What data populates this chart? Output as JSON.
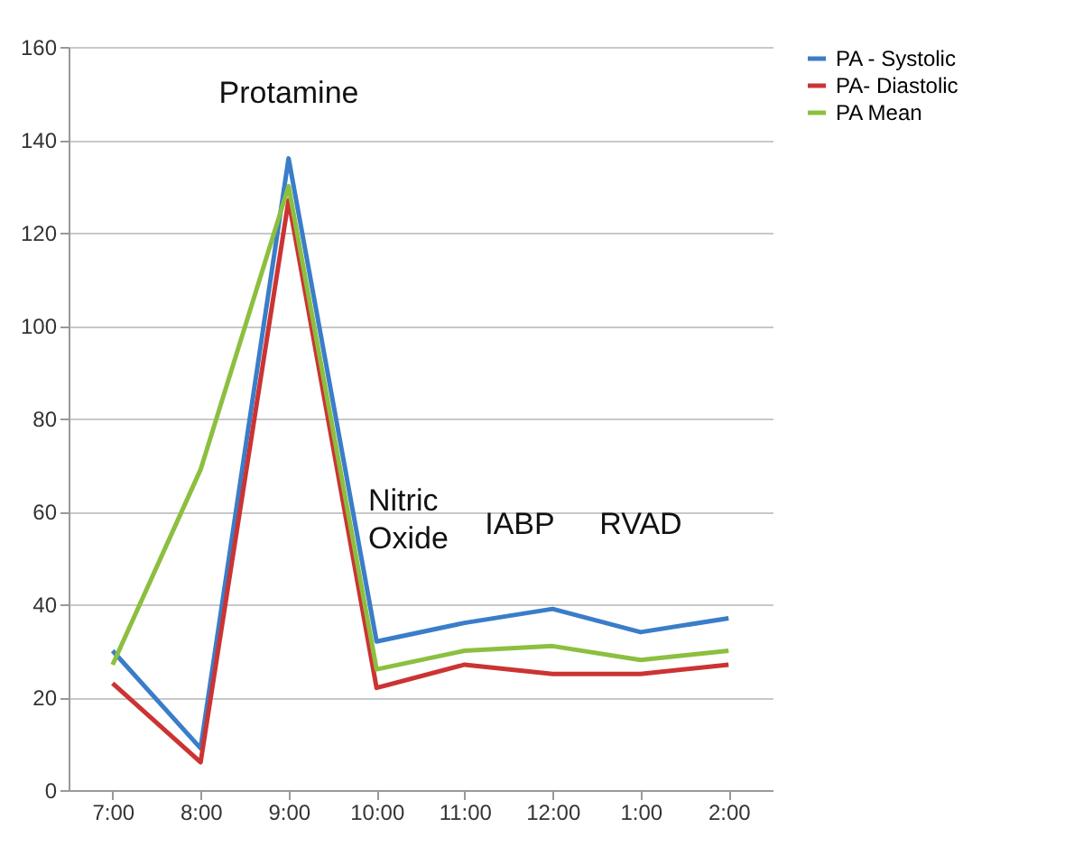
{
  "chart_data": {
    "type": "line",
    "categories": [
      "7:00",
      "8:00",
      "9:00",
      "10:00",
      "11:00",
      "12:00",
      "1:00",
      "2:00"
    ],
    "series": [
      {
        "name": "PA - Systolic",
        "color": "#3a7dc9",
        "values": [
          30,
          9,
          136,
          32,
          36,
          39,
          34,
          37
        ]
      },
      {
        "name": "PA- Diastolic",
        "color": "#cc3333",
        "values": [
          23,
          6,
          127,
          22,
          27,
          25,
          25,
          27
        ]
      },
      {
        "name": "PA Mean",
        "color": "#8cbf3f",
        "values": [
          27,
          69,
          130,
          26,
          30,
          31,
          28,
          30
        ]
      }
    ],
    "ylim": [
      0,
      160
    ],
    "yticks": [
      0,
      20,
      40,
      60,
      80,
      100,
      120,
      140,
      160
    ],
    "grid": "y",
    "legend": "right",
    "marker": "none",
    "annotations": [
      "Protamine",
      "Nitric Oxide",
      "IABP",
      "RVAD"
    ]
  }
}
